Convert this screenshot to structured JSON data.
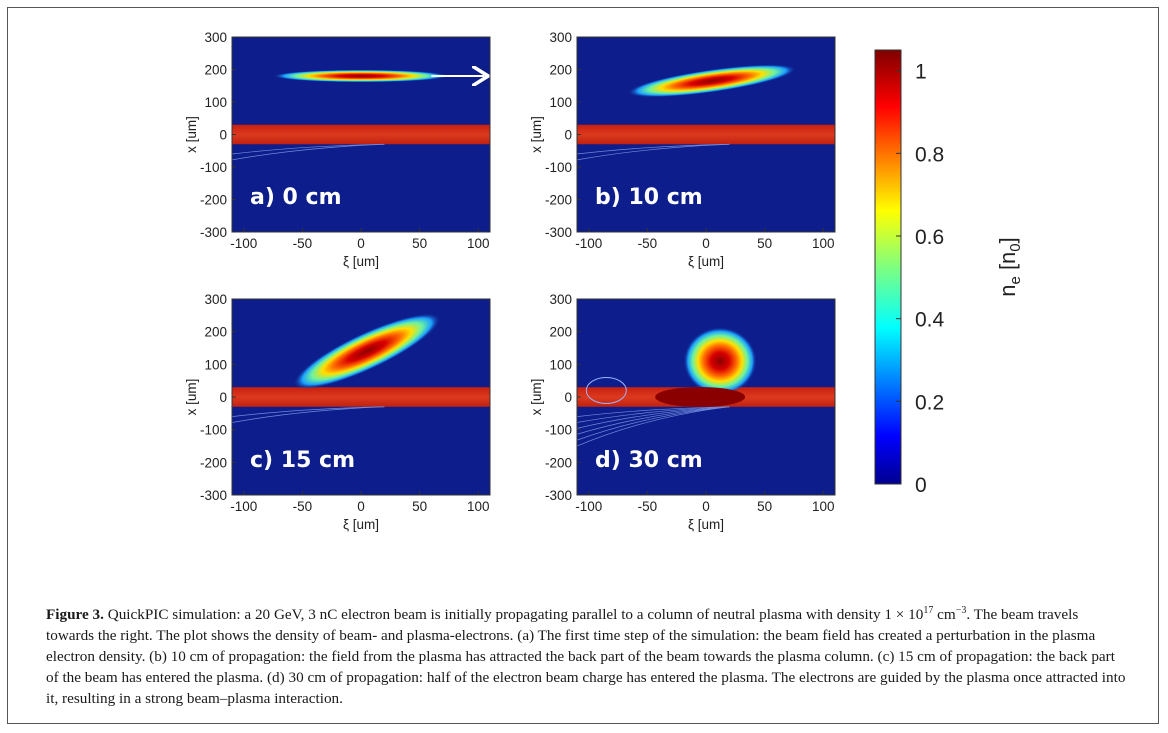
{
  "figure": {
    "caption_label": "Figure 3.",
    "caption_parts": [
      " QuickPIC simulation: a 20 GeV, 3 nC electron beam is initially propagating parallel to a column of neutral plasma with density 1 × 10",
      "17",
      " cm",
      "−3",
      ". The beam travels towards the right. The plot shows the density of beam- and plasma-electrons. (a) The first time step of the simulation: the beam field has created a perturbation in the plasma electron density. (b) 10 cm of propagation: the field from the plasma has attracted the back part of the beam towards the plasma column. (c) 15 cm of propagation: the back part of the beam has entered the plasma. (d) 30 cm of propagation: half of the electron beam charge has entered the plasma. The electrons are guided by the plasma once attracted into it, resulting in a strong beam–plasma interaction."
    ]
  },
  "chart_data": {
    "type": "heatmap",
    "panels": [
      {
        "id": "a",
        "label": "a) 0 cm",
        "beam_center": [
          0,
          180
        ],
        "beam_size": [
          60,
          12
        ],
        "tilt": 0,
        "arrow": true,
        "show_ylabel": true,
        "show_xlabel": true
      },
      {
        "id": "b",
        "label": "b) 10 cm",
        "beam_center": [
          5,
          165
        ],
        "beam_size": [
          58,
          22
        ],
        "tilt": -8,
        "arrow": false,
        "show_ylabel": true,
        "show_xlabel": true
      },
      {
        "id": "c",
        "label": "c) 15 cm",
        "beam_center": [
          5,
          140
        ],
        "beam_size": [
          55,
          35
        ],
        "tilt": -25,
        "arrow": false,
        "show_ylabel": true,
        "show_xlabel": true
      },
      {
        "id": "d",
        "label": "d) 30 cm",
        "beam_center": [
          12,
          110
        ],
        "beam_size": [
          25,
          65
        ],
        "tilt": 0,
        "arrow": false,
        "show_ylabel": true,
        "show_xlabel": true
      }
    ],
    "plasma_band": [
      -30,
      30
    ],
    "xlim": [
      -110,
      110
    ],
    "ylim": [
      -300,
      300
    ],
    "xticks": [
      "-100",
      "-50",
      "0",
      "50",
      "100"
    ],
    "xtick_values": [
      -100,
      -50,
      0,
      50,
      100
    ],
    "yticks": [
      "300",
      "200",
      "100",
      "0",
      "-100",
      "-200",
      "-300"
    ],
    "ytick_values": [
      300,
      200,
      100,
      0,
      -100,
      -200,
      -300
    ],
    "xlabel": "ξ [um]",
    "ylabel": "x [um]",
    "colorbar": {
      "label": "n_e [n_0]",
      "label_main": "n",
      "label_sub": "e",
      "label_rest": " [n",
      "label_sub2": "0",
      "label_end": "]",
      "range": [
        0,
        1.05
      ],
      "ticks": [
        "1",
        "0.8",
        "0.6",
        "0.4",
        "0.2",
        "0"
      ],
      "tick_values": [
        1,
        0.8,
        0.6,
        0.4,
        0.2,
        0
      ],
      "colormap": "jet"
    },
    "colors": {
      "background": "#0d1e8c",
      "plasma": "#d42a16",
      "arrow": "#ffffff"
    }
  }
}
